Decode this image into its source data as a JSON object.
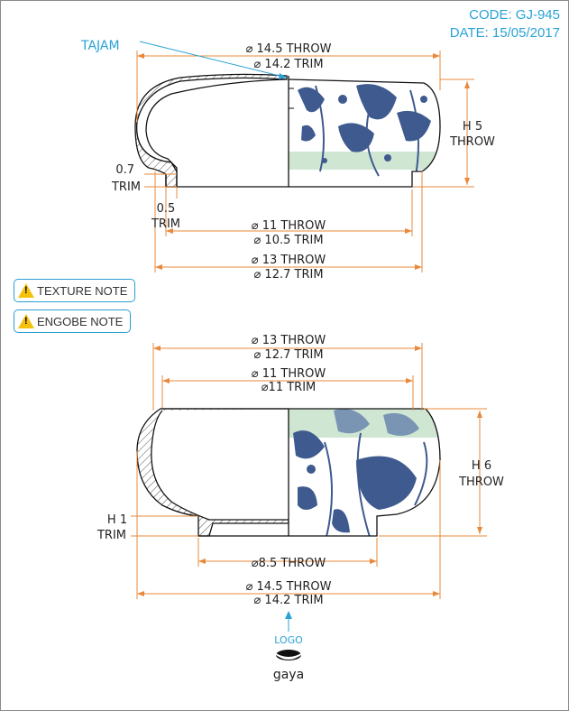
{
  "header": {
    "code": "CODE: GJ-945",
    "date": "DATE: 15/05/2017"
  },
  "notes": {
    "texture": "TEXTURE NOTE",
    "engobe": "ENGOBE NOTE"
  },
  "top_view": {
    "callout": "TAJAM",
    "outer_throw": "⌀ 14.5 THROW",
    "outer_trim": "⌀ 14.2 TRIM",
    "height_h": "H 5",
    "height_throw": "THROW",
    "lip_07": "0.7",
    "lip_07_trim": "TRIM",
    "lip_05": "0.5",
    "lip_05_trim": "TRIM",
    "base_throw": "⌀ 11 THROW",
    "base_trim": "⌀ 10.5 TRIM",
    "foot_throw": "⌀ 13 THROW",
    "foot_trim": "⌀ 12.7 TRIM"
  },
  "bottom_view": {
    "top_throw": "⌀ 13 THROW",
    "top_trim": "⌀ 12.7 TRIM",
    "inner_throw": "⌀ 11 THROW",
    "inner_trim": "⌀11 TRIM",
    "height_h": "H 6",
    "height_throw": "THROW",
    "h1": "H 1",
    "h1_trim": "TRIM",
    "foot_throw": "⌀8.5 THROW",
    "outer_throw": "⌀ 14.5 THROW",
    "outer_trim": "⌀ 14.2 TRIM"
  },
  "logo": {
    "label": "LOGO",
    "brand": "gaya"
  },
  "colors": {
    "dimension": "#e8883a",
    "accent": "#2aa3d6",
    "pattern": "#3f5a8f",
    "band": "#cfe6d3",
    "outline": "#111111"
  }
}
